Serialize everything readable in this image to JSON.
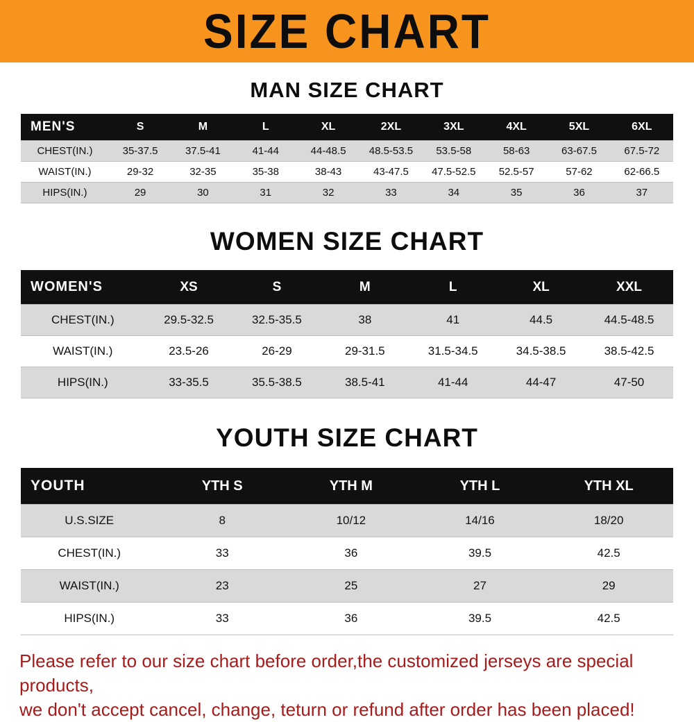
{
  "banner": {
    "title": "SIZE CHART"
  },
  "colors": {
    "banner_bg": "#F7941E",
    "table_header_bg": "#101010",
    "row_alt_gray": "#D9D9D9",
    "footer_red": "#A61B1B"
  },
  "chart_data": [
    {
      "type": "table",
      "title": "MAN SIZE CHART",
      "columns": [
        "MEN'S",
        "S",
        "M",
        "L",
        "XL",
        "2XL",
        "3XL",
        "4XL",
        "5XL",
        "6XL"
      ],
      "rows": [
        [
          "CHEST(IN.)",
          "35-37.5",
          "37.5-41",
          "41-44",
          "44-48.5",
          "48.5-53.5",
          "53.5-58",
          "58-63",
          "63-67.5",
          "67.5-72"
        ],
        [
          "WAIST(IN.)",
          "29-32",
          "32-35",
          "35-38",
          "38-43",
          "43-47.5",
          "47.5-52.5",
          "52.5-57",
          "57-62",
          "62-66.5"
        ],
        [
          "HIPS(IN.)",
          "29",
          "30",
          "31",
          "32",
          "33",
          "34",
          "35",
          "36",
          "37"
        ]
      ]
    },
    {
      "type": "table",
      "title": "WOMEN SIZE CHART",
      "columns": [
        "WOMEN'S",
        "XS",
        "S",
        "M",
        "L",
        "XL",
        "XXL"
      ],
      "rows": [
        [
          "CHEST(IN.)",
          "29.5-32.5",
          "32.5-35.5",
          "38",
          "41",
          "44.5",
          "44.5-48.5"
        ],
        [
          "WAIST(IN.)",
          "23.5-26",
          "26-29",
          "29-31.5",
          "31.5-34.5",
          "34.5-38.5",
          "38.5-42.5"
        ],
        [
          "HIPS(IN.)",
          "33-35.5",
          "35.5-38.5",
          "38.5-41",
          "41-44",
          "44-47",
          "47-50"
        ]
      ]
    },
    {
      "type": "table",
      "title": "YOUTH SIZE CHART",
      "columns": [
        "YOUTH",
        "YTH S",
        "YTH M",
        "YTH L",
        "YTH XL"
      ],
      "rows": [
        [
          "U.S.SIZE",
          "8",
          "10/12",
          "14/16",
          "18/20"
        ],
        [
          "CHEST(IN.)",
          "33",
          "36",
          "39.5",
          "42.5"
        ],
        [
          "WAIST(IN.)",
          "23",
          "25",
          "27",
          "29"
        ],
        [
          "HIPS(IN.)",
          "33",
          "36",
          "39.5",
          "42.5"
        ]
      ]
    }
  ],
  "footer": {
    "line1": "Please refer to our size chart before order,the customized jerseys are special products,",
    "line2": "we don't accept cancel, change, teturn or refund after order has been placed!"
  }
}
